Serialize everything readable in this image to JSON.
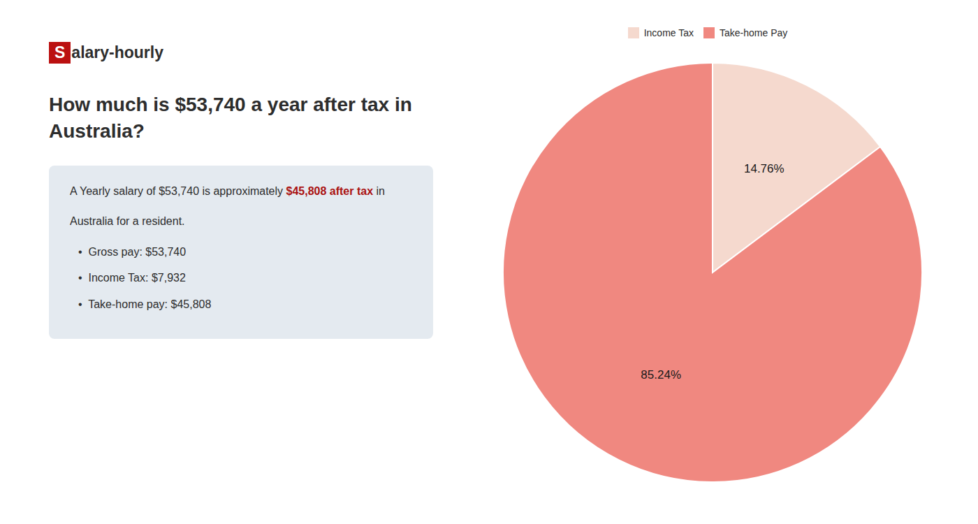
{
  "chart_data": {
    "type": "pie",
    "categories": [
      "Income Tax",
      "Take-home Pay"
    ],
    "values": [
      14.76,
      85.24
    ],
    "value_labels": [
      "14.76%",
      "85.24%"
    ],
    "colors": [
      "#f5d9ce",
      "#f08880"
    ],
    "data_labels": true,
    "legend": "top",
    "title": "How much is $53,740 a year after tax in\nAustralia?",
    "annotations": [
      "S",
      "alary-hourly",
      "A Yearly salary of $53,740 is approximately ",
      "$45,808 after tax",
      " in",
      "Australia for a resident.",
      "•  Gross pay: $53,740",
      "•  Income Tax: $7,932",
      "•  Take-home pay: $45,808"
    ]
  }
}
